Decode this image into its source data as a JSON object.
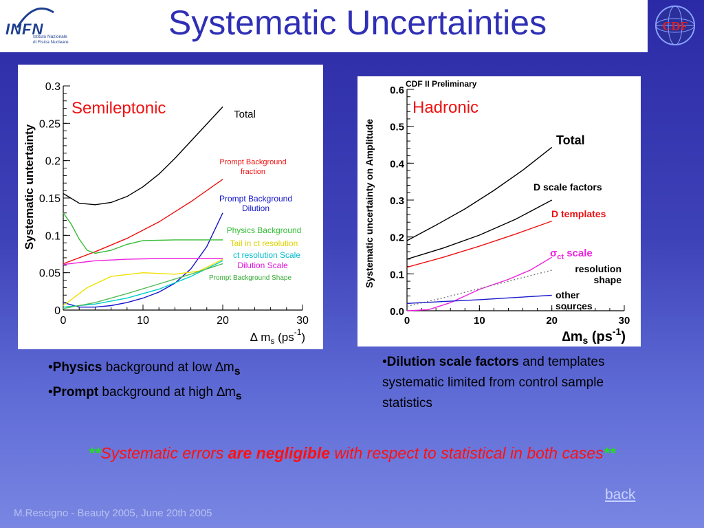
{
  "header": {
    "title": "Systematic Uncertainties",
    "logo_brand": "INFN",
    "logo_subtitle_1": "Istituto Nazionale",
    "logo_subtitle_2": "di Fisica Nucleare",
    "cdf_logo_text": "CDF"
  },
  "bullets_left": {
    "line1_bold": "Physics",
    "line1_rest": " background at low ∆m",
    "line1_sub": "s",
    "line2_bold": "Prompt",
    "line2_rest": " background at high ∆m",
    "line2_sub": "s"
  },
  "bullets_right": {
    "bold": "Dilution scale factors",
    "rest": " and templates",
    "line2": "systematic limited from control sample",
    "line3": "statistics"
  },
  "conclusion": {
    "stars": "**",
    "pre": "Systematic errors ",
    "bold": "are negligible",
    "post": " with respect to statistical in both cases"
  },
  "back_link": "back",
  "footer": "M.Rescigno - Beauty 2005,  June 20th 2005",
  "chart_data": [
    {
      "type": "line",
      "title": "Semileptonic",
      "xlabel": "∆ m",
      "xlabel_sub": "s",
      "xlabel_unit": "(ps",
      "xlabel_sup": "-1",
      "xlabel_close": ")",
      "ylabel": "Systematic untertainty",
      "xlim": [
        0,
        30
      ],
      "ylim": [
        0,
        0.3
      ],
      "x_ticks": [
        0,
        10,
        20,
        30
      ],
      "y_ticks": [
        0,
        0.05,
        0.1,
        0.15,
        0.2,
        0.25,
        0.3
      ],
      "y_tick_labels": [
        "0",
        "0.05",
        "0.1",
        "0.15",
        "0.2",
        "0.25",
        "0.3"
      ],
      "series": [
        {
          "name": "Total",
          "color": "#000000",
          "x": [
            0,
            2,
            4,
            6,
            8,
            10,
            12,
            14,
            16,
            18,
            20
          ],
          "y": [
            0.156,
            0.143,
            0.141,
            0.144,
            0.152,
            0.165,
            0.182,
            0.203,
            0.226,
            0.249,
            0.272
          ]
        },
        {
          "name": "Prompt Background fraction",
          "color": "#ee1111",
          "x": [
            0,
            4,
            8,
            12,
            16,
            20
          ],
          "y": [
            0.062,
            0.078,
            0.096,
            0.118,
            0.145,
            0.175
          ]
        },
        {
          "name": "Prompt Background Dilution",
          "color": "#1515cc",
          "x": [
            0,
            2,
            4,
            6,
            8,
            10,
            12,
            14,
            16,
            18,
            20
          ],
          "y": [
            0.01,
            0.004,
            0.004,
            0.006,
            0.01,
            0.016,
            0.024,
            0.036,
            0.055,
            0.085,
            0.13
          ]
        },
        {
          "name": "Physics Background",
          "color": "#33bb33",
          "x": [
            0,
            1,
            2,
            3,
            4,
            6,
            8,
            10,
            14,
            20
          ],
          "y": [
            0.13,
            0.115,
            0.095,
            0.08,
            0.076,
            0.08,
            0.088,
            0.093,
            0.094,
            0.094
          ]
        },
        {
          "name": "Tail in ct resolution",
          "color": "#f0e000",
          "x": [
            0,
            3,
            6,
            10,
            14,
            17,
            20
          ],
          "y": [
            0.006,
            0.03,
            0.045,
            0.05,
            0.048,
            0.052,
            0.068
          ]
        },
        {
          "name": "ct resolution Scale",
          "color": "#00cccc",
          "x": [
            0,
            4,
            8,
            12,
            16,
            20
          ],
          "y": [
            0.004,
            0.008,
            0.016,
            0.028,
            0.045,
            0.066
          ]
        },
        {
          "name": "Dilution Scale",
          "color": "#ee22dd",
          "x": [
            0,
            4,
            8,
            12,
            16,
            20
          ],
          "y": [
            0.061,
            0.066,
            0.068,
            0.069,
            0.069,
            0.069
          ]
        },
        {
          "name": "Prompt Background Shape",
          "color": "#55bb55",
          "x": [
            0,
            4,
            8,
            12,
            16,
            20
          ],
          "y": [
            0.002,
            0.01,
            0.022,
            0.035,
            0.048,
            0.062
          ]
        }
      ]
    },
    {
      "type": "line",
      "title": "Hadronic",
      "annotation": "CDF II Preliminary",
      "xlabel": "∆m",
      "xlabel_sub": "s",
      "xlabel_unit": " (ps",
      "xlabel_sup": "-1",
      "xlabel_close": ")",
      "ylabel": "Systematic uncertainty on Amplitude",
      "xlim": [
        0,
        30
      ],
      "ylim": [
        0,
        0.6
      ],
      "x_ticks": [
        0,
        10,
        20,
        30
      ],
      "y_ticks": [
        0,
        0.1,
        0.2,
        0.3,
        0.4,
        0.5,
        0.6
      ],
      "y_tick_labels": [
        "0.0",
        "0.1",
        "0.2",
        "0.3",
        "0.4",
        "0.5",
        "0.6"
      ],
      "series": [
        {
          "name": "Total",
          "color": "#000000",
          "x": [
            0,
            4,
            8,
            12,
            16,
            20
          ],
          "y": [
            0.19,
            0.232,
            0.276,
            0.326,
            0.381,
            0.443
          ]
        },
        {
          "name": "D scale factors",
          "color": "#000000",
          "x": [
            0,
            5,
            10,
            15,
            20
          ],
          "y": [
            0.14,
            0.17,
            0.205,
            0.248,
            0.3
          ]
        },
        {
          "name": "D templates",
          "color": "#ee1111",
          "x": [
            0,
            5,
            10,
            15,
            20
          ],
          "y": [
            0.118,
            0.145,
            0.175,
            0.208,
            0.243
          ]
        },
        {
          "name": "σct scale",
          "color": "#ee22dd",
          "x": [
            0,
            3,
            6,
            10,
            14,
            17,
            20
          ],
          "y": [
            0.0,
            0.003,
            0.022,
            0.058,
            0.085,
            0.11,
            0.145
          ]
        },
        {
          "name": "resolution shape",
          "color": "#777777",
          "x": [
            0,
            5,
            10,
            15,
            20
          ],
          "y": [
            0.012,
            0.035,
            0.06,
            0.085,
            0.11
          ]
        },
        {
          "name": "other sources",
          "color": "#1a1acc",
          "x": [
            0,
            5,
            10,
            15,
            20
          ],
          "y": [
            0.02,
            0.025,
            0.03,
            0.036,
            0.042
          ]
        }
      ]
    }
  ]
}
